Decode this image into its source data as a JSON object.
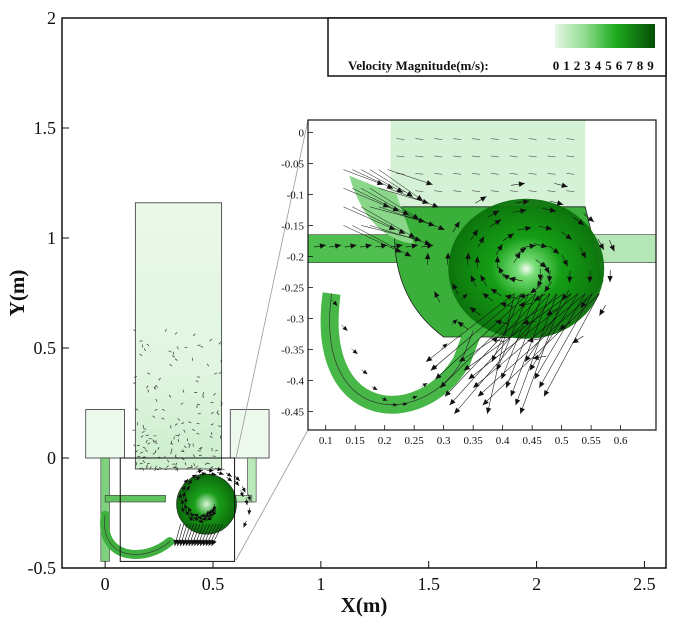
{
  "chart_data": [
    {
      "type": "vector-field",
      "xlabel": "X(m)",
      "ylabel": "Y(m)",
      "xlim": [
        -0.2,
        2.6
      ],
      "ylim": [
        -0.5,
        2.0
      ],
      "x_ticks": [
        "0",
        "0.5",
        "1",
        "1.5",
        "2",
        "2.5"
      ],
      "x_tick_values": [
        0,
        0.5,
        1,
        1.5,
        2,
        2.5
      ],
      "y_ticks": [
        "-0.5",
        "0",
        "0.5",
        "1",
        "1.5",
        "2"
      ],
      "y_tick_values": [
        -0.5,
        0,
        0.5,
        1,
        1.5,
        2
      ],
      "legend": {
        "title": "Velocity Magnitude(m/s):",
        "labels": [
          "0",
          "1",
          "2",
          "3",
          "4",
          "5",
          "6",
          "7",
          "8",
          "9"
        ],
        "colors": [
          "#e6f7e6",
          "#c8efc8",
          "#a6e6a6",
          "#7ed87e",
          "#52c852",
          "#2bb52b",
          "#129c12",
          "#0a820a",
          "#066806",
          "#034d03"
        ]
      },
      "geometry": {
        "riser": {
          "x": [
            0.14,
            0.54
          ],
          "y": [
            -0.05,
            1.16
          ]
        },
        "left_box": {
          "x": [
            -0.09,
            0.09
          ],
          "y": [
            0.0,
            0.22
          ]
        },
        "right_box": {
          "x": [
            0.58,
            0.76
          ],
          "y": [
            0.0,
            0.22
          ]
        },
        "zoom_box": {
          "x": [
            0.07,
            0.6
          ],
          "y": [
            -0.47,
            0.0
          ]
        },
        "cyclone_center": {
          "x": 0.47,
          "y": -0.21
        }
      }
    },
    {
      "type": "vector-field",
      "xlim": [
        0.07,
        0.66
      ],
      "ylim": [
        -0.48,
        0.02
      ],
      "x_ticks": [
        "0.1",
        "0.15",
        "0.2",
        "0.25",
        "0.3",
        "0.35",
        "0.4",
        "0.45",
        "0.5",
        "0.55",
        "0.6"
      ],
      "x_tick_values": [
        0.1,
        0.15,
        0.2,
        0.25,
        0.3,
        0.35,
        0.4,
        0.45,
        0.5,
        0.55,
        0.6
      ],
      "y_ticks": [
        "0",
        "-0.05",
        "-0.1",
        "-0.15",
        "-0.2",
        "-0.25",
        "-0.3",
        "-0.35",
        "-0.4",
        "-0.45"
      ],
      "y_tick_values": [
        0,
        -0.05,
        -0.1,
        -0.15,
        -0.2,
        -0.25,
        -0.3,
        -0.35,
        -0.4,
        -0.45
      ]
    }
  ]
}
